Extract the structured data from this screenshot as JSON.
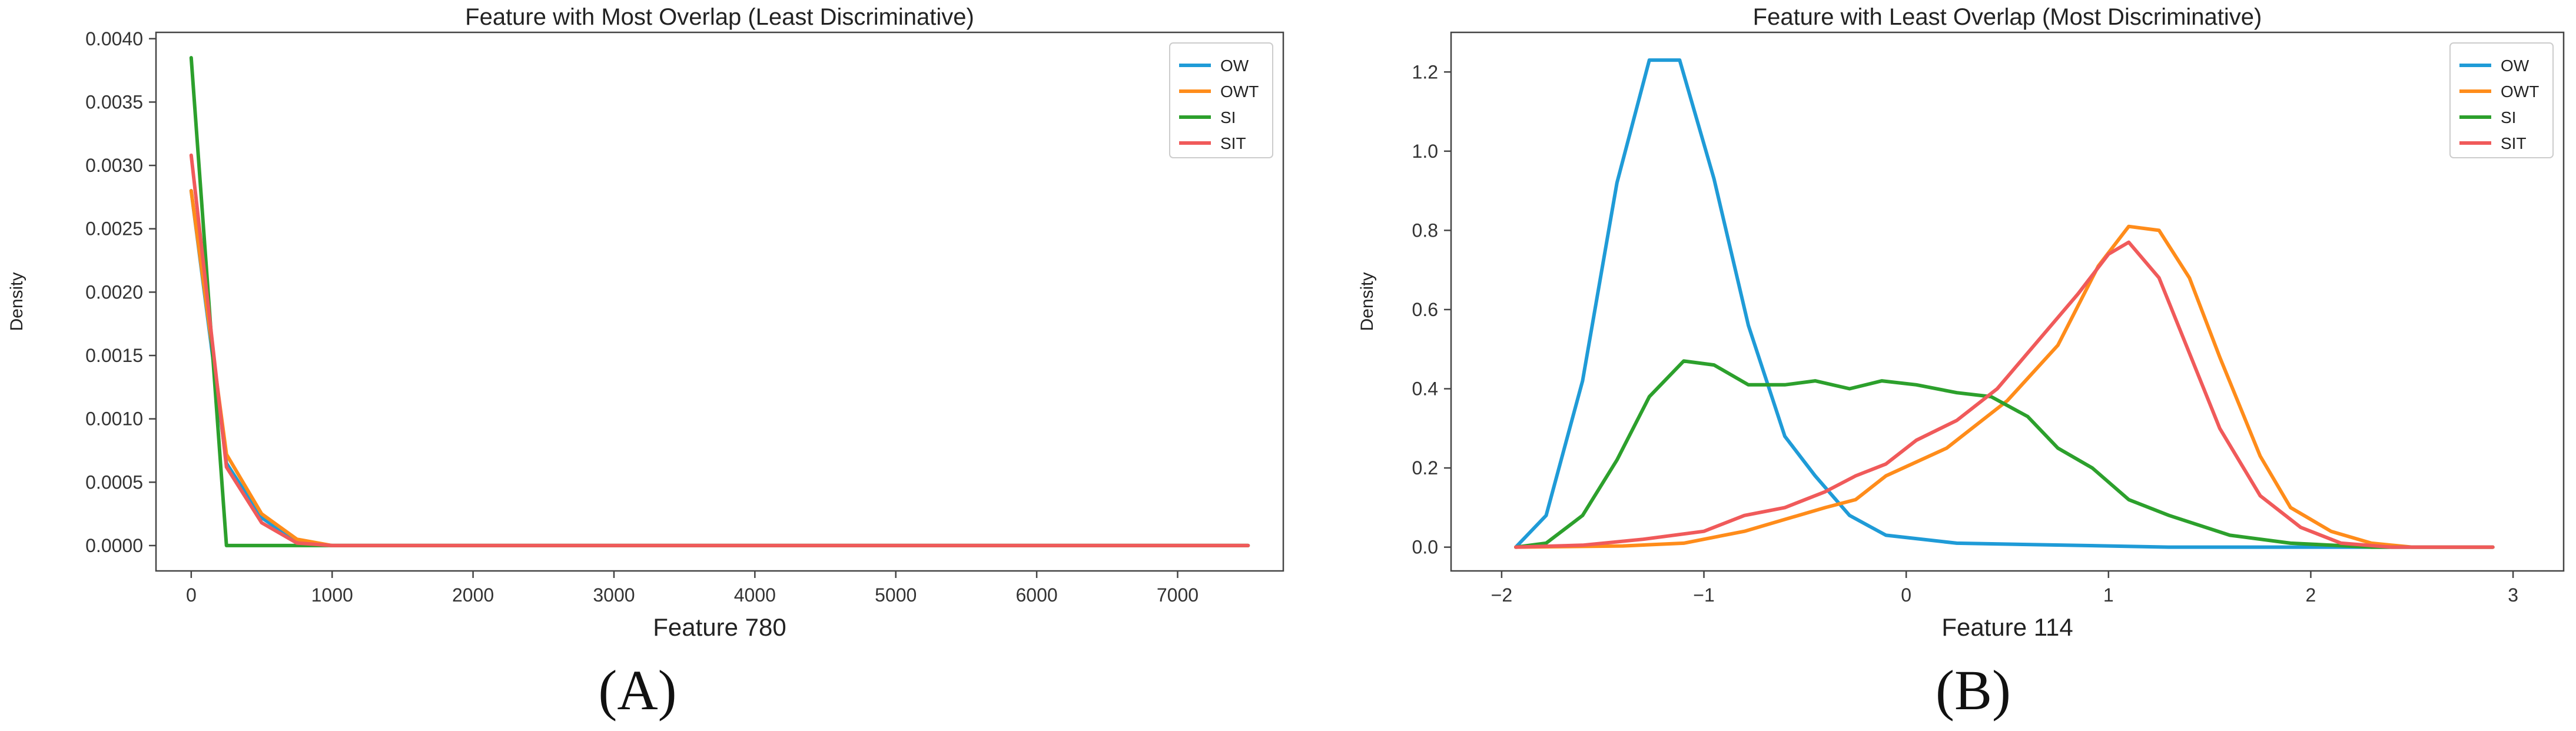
{
  "chart_data": [
    {
      "type": "line",
      "panel_label": "(A)",
      "title": "Feature with Most Overlap (Least Discriminative)",
      "xlabel": "Feature 780",
      "ylabel": "Density",
      "xlim": [
        -250,
        7750
      ],
      "ylim": [
        -0.0002,
        0.00405
      ],
      "xticks": [
        0,
        1000,
        2000,
        3000,
        4000,
        5000,
        6000,
        7000
      ],
      "yticks": [
        0.0,
        0.0005,
        0.001,
        0.0015,
        0.002,
        0.0025,
        0.003,
        0.0035,
        0.004
      ],
      "ytick_labels": [
        "0.0000",
        "0.0005",
        "0.0010",
        "0.0015",
        "0.0020",
        "0.0025",
        "0.0030",
        "0.0035",
        "0.0040"
      ],
      "grid": false,
      "legend_position": "top-right",
      "series": [
        {
          "name": "OW",
          "color": "#1f9bd7",
          "x": [
            0,
            250,
            500,
            750,
            1000,
            7500
          ],
          "y": [
            0.0028,
            0.00065,
            0.00022,
            3e-05,
            0.0,
            0.0
          ]
        },
        {
          "name": "OWT",
          "color": "#ff8c1a",
          "x": [
            0,
            250,
            500,
            750,
            1000,
            7500
          ],
          "y": [
            0.0028,
            0.00072,
            0.00025,
            5e-05,
            0.0,
            0.0
          ]
        },
        {
          "name": "SI",
          "color": "#2ca02c",
          "x": [
            0,
            250,
            7500
          ],
          "y": [
            0.00385,
            0.0,
            0.0
          ]
        },
        {
          "name": "SIT",
          "color": "#f05a5a",
          "x": [
            0,
            250,
            500,
            750,
            1000,
            7500
          ],
          "y": [
            0.00308,
            0.00062,
            0.00018,
            2e-05,
            0.0,
            0.0
          ]
        }
      ]
    },
    {
      "type": "line",
      "panel_label": "(B)",
      "title": "Feature with Least Overlap (Most Discriminative)",
      "xlabel": "Feature 114",
      "ylabel": "Density",
      "xlim": [
        -2.25,
        3.25
      ],
      "ylim": [
        -0.06,
        1.3
      ],
      "xticks": [
        -2,
        -1,
        0,
        1,
        2,
        3
      ],
      "xtick_labels": [
        "−2",
        "−1",
        "0",
        "1",
        "2",
        "3"
      ],
      "yticks": [
        0.0,
        0.2,
        0.4,
        0.6,
        0.8,
        1.0,
        1.2
      ],
      "ytick_labels": [
        "0.0",
        "0.2",
        "0.4",
        "0.6",
        "0.8",
        "1.0",
        "1.2"
      ],
      "grid": false,
      "legend_position": "top-right",
      "series": [
        {
          "name": "OW",
          "color": "#1f9bd7",
          "x": [
            -1.93,
            -1.78,
            -1.6,
            -1.43,
            -1.27,
            -1.12,
            -0.95,
            -0.78,
            -0.6,
            -0.45,
            -0.28,
            -0.1,
            0.25,
            1.0,
            1.3,
            2.0,
            2.9
          ],
          "y": [
            0.0,
            0.08,
            0.42,
            0.92,
            1.23,
            1.23,
            0.93,
            0.56,
            0.28,
            0.18,
            0.08,
            0.03,
            0.01,
            0.003,
            0.0,
            0.0,
            0.0
          ]
        },
        {
          "name": "OWT",
          "color": "#ff8c1a",
          "x": [
            -1.93,
            -1.4,
            -1.1,
            -0.8,
            -0.6,
            -0.4,
            -0.25,
            -0.1,
            0.2,
            0.5,
            0.75,
            0.95,
            1.1,
            1.25,
            1.4,
            1.55,
            1.75,
            1.9,
            2.1,
            2.3,
            2.5,
            2.9
          ],
          "y": [
            0.0,
            0.003,
            0.01,
            0.04,
            0.07,
            0.1,
            0.12,
            0.18,
            0.25,
            0.37,
            0.51,
            0.71,
            0.81,
            0.8,
            0.68,
            0.48,
            0.23,
            0.1,
            0.04,
            0.01,
            0.0,
            0.0
          ]
        },
        {
          "name": "SI",
          "color": "#2ca02c",
          "x": [
            -1.93,
            -1.78,
            -1.6,
            -1.43,
            -1.27,
            -1.1,
            -0.95,
            -0.78,
            -0.6,
            -0.45,
            -0.28,
            -0.12,
            0.05,
            0.25,
            0.42,
            0.6,
            0.75,
            0.92,
            1.1,
            1.3,
            1.6,
            1.9,
            2.3,
            2.9
          ],
          "y": [
            0.0,
            0.01,
            0.08,
            0.22,
            0.38,
            0.47,
            0.46,
            0.41,
            0.41,
            0.42,
            0.4,
            0.42,
            0.41,
            0.39,
            0.38,
            0.33,
            0.25,
            0.2,
            0.12,
            0.08,
            0.03,
            0.01,
            0.0,
            0.0
          ]
        },
        {
          "name": "SIT",
          "color": "#f05a5a",
          "x": [
            -1.93,
            -1.6,
            -1.3,
            -1.0,
            -0.8,
            -0.6,
            -0.4,
            -0.25,
            -0.1,
            0.05,
            0.25,
            0.45,
            0.65,
            0.85,
            1.0,
            1.1,
            1.25,
            1.4,
            1.55,
            1.75,
            1.95,
            2.15,
            2.4,
            2.9
          ],
          "y": [
            0.0,
            0.005,
            0.02,
            0.04,
            0.08,
            0.1,
            0.14,
            0.18,
            0.21,
            0.27,
            0.32,
            0.4,
            0.52,
            0.64,
            0.74,
            0.77,
            0.68,
            0.49,
            0.3,
            0.13,
            0.05,
            0.01,
            0.0,
            0.0
          ]
        }
      ]
    }
  ]
}
